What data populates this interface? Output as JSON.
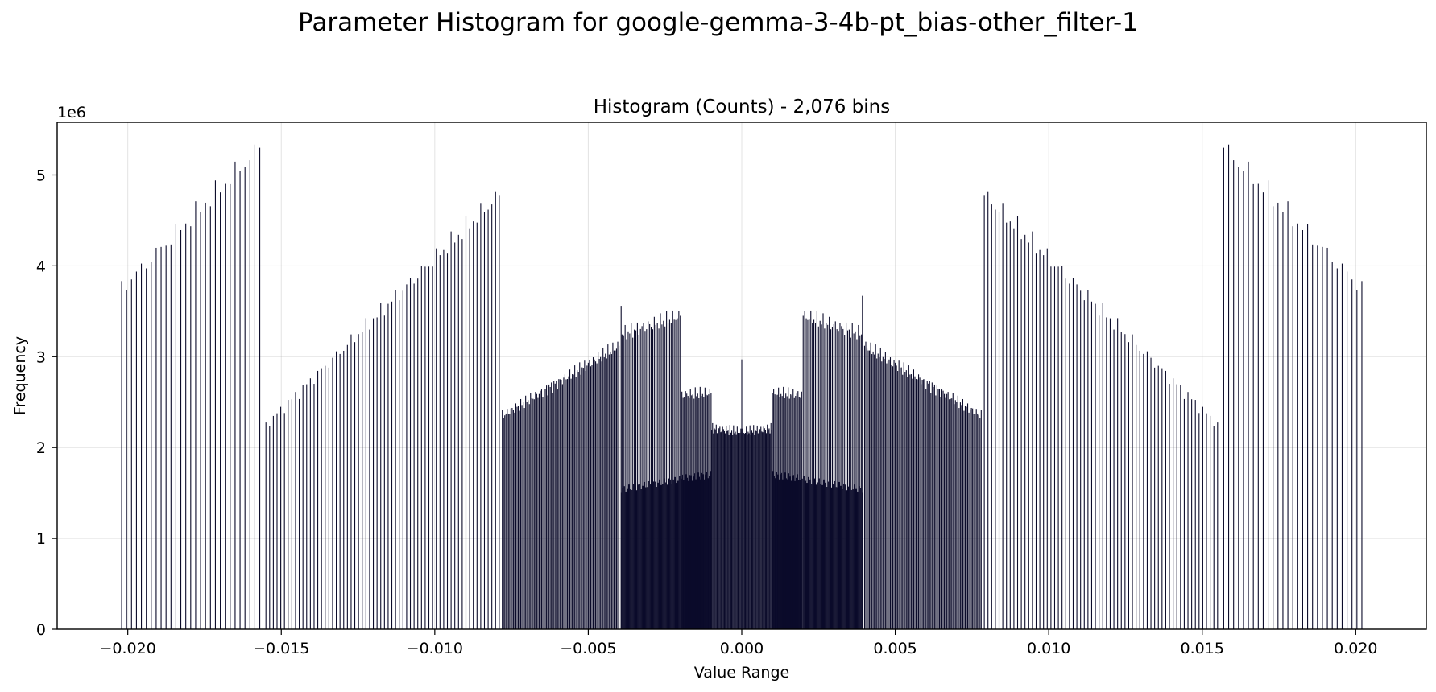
{
  "figure": {
    "suptitle": "Parameter Histogram for google-gemma-3-4b-pt_bias-other_filter-1"
  },
  "chart_data": {
    "type": "bar",
    "title": "Histogram (Counts) - 2,076 bins",
    "xlabel": "Value Range",
    "ylabel": "Frequency",
    "y_offset_label": "1e6",
    "xlim": [
      -0.0223,
      0.0223
    ],
    "ylim": [
      0,
      5580000
    ],
    "x_ticks": [
      -0.02,
      -0.015,
      -0.01,
      -0.005,
      0.0,
      0.005,
      0.01,
      0.015,
      0.02
    ],
    "x_tick_labels": [
      "−0.020",
      "−0.015",
      "−0.010",
      "−0.005",
      "0.000",
      "0.005",
      "0.010",
      "0.015",
      "0.020"
    ],
    "y_ticks": [
      0,
      1000000,
      2000000,
      3000000,
      4000000,
      5000000
    ],
    "y_tick_labels": [
      "0",
      "1",
      "2",
      "3",
      "4",
      "5"
    ],
    "grid": true,
    "bar_color": "#0b0b2a",
    "bin_count": 2076,
    "bins_shown": "approximate nonzero-bin envelope (representative bins, symmetric about 0)",
    "segments": [
      {
        "x_range": [
          0.0,
          0.00098
        ],
        "spacing": 3e-05,
        "count_start": 2170000,
        "count_end": 2210000,
        "extra": [
          {
            "x": 0.0,
            "value": 2970000
          }
        ]
      },
      {
        "x_range": [
          0.001,
          0.00195
        ],
        "spacing": 4e-05,
        "count_start": 2600000,
        "count_end": 2580000,
        "under_count": 1700000,
        "under_count_end": 1660000
      },
      {
        "x_range": [
          0.002,
          0.0039
        ],
        "spacing": 5e-05,
        "count_start": 3450000,
        "count_end": 3250000,
        "under_count": 1650000,
        "under_count_end": 1540000,
        "extra": [
          {
            "x": 0.00393,
            "value": 3670000
          }
        ]
      },
      {
        "x_range": [
          0.004,
          0.0078
        ],
        "spacing": 4e-05,
        "count_start": 3120000,
        "count_end": 2350000
      },
      {
        "x_range": [
          0.0079,
          0.0155
        ],
        "spacing": 0.00012,
        "count_start": 4780000,
        "count_end": 2250000
      },
      {
        "x_range": [
          0.0157,
          0.0202
        ],
        "spacing": 0.00016,
        "count_start": 5300000,
        "count_end": 3750000
      }
    ]
  }
}
